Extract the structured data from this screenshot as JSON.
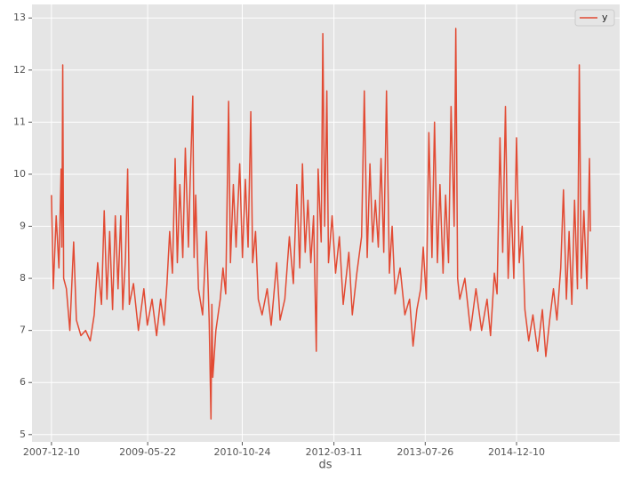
{
  "chart_data": {
    "type": "line",
    "x_label": "ds",
    "x": [
      "2007-12-10",
      "2007-12-20",
      "2008-01-05",
      "2008-01-20",
      "2008-02-01",
      "2008-02-05",
      "2008-02-10",
      "2008-02-15",
      "2008-03-01",
      "2008-03-20",
      "2008-04-10",
      "2008-04-25",
      "2008-05-20",
      "2008-06-15",
      "2008-07-10",
      "2008-08-01",
      "2008-08-20",
      "2008-09-10",
      "2008-09-25",
      "2008-10-10",
      "2008-10-25",
      "2008-11-10",
      "2008-11-25",
      "2008-12-10",
      "2008-12-25",
      "2009-01-05",
      "2009-01-20",
      "2009-02-01",
      "2009-02-10",
      "2009-03-05",
      "2009-04-01",
      "2009-05-01",
      "2009-05-20",
      "2009-06-15",
      "2009-07-10",
      "2009-08-01",
      "2009-08-20",
      "2009-09-05",
      "2009-09-20",
      "2009-10-05",
      "2009-10-20",
      "2009-11-01",
      "2009-11-15",
      "2009-12-01",
      "2009-12-15",
      "2010-01-01",
      "2010-01-10",
      "2010-01-25",
      "2010-02-01",
      "2010-02-10",
      "2010-02-25",
      "2010-03-20",
      "2010-04-10",
      "2010-04-25",
      "2010-05-05",
      "2010-05-10",
      "2010-05-15",
      "2010-06-01",
      "2010-06-25",
      "2010-07-10",
      "2010-07-25",
      "2010-08-10",
      "2010-08-20",
      "2010-09-05",
      "2010-09-20",
      "2010-10-10",
      "2010-10-25",
      "2010-11-10",
      "2010-11-25",
      "2010-12-10",
      "2010-12-20",
      "2011-01-05",
      "2011-01-20",
      "2011-02-10",
      "2011-03-10",
      "2011-04-01",
      "2011-05-01",
      "2011-05-20",
      "2011-06-15",
      "2011-07-10",
      "2011-08-01",
      "2011-08-20",
      "2011-09-05",
      "2011-09-20",
      "2011-10-05",
      "2011-10-20",
      "2011-11-05",
      "2011-11-20",
      "2011-12-05",
      "2011-12-15",
      "2012-01-01",
      "2012-01-10",
      "2012-01-20",
      "2012-02-01",
      "2012-02-10",
      "2012-03-01",
      "2012-03-20",
      "2012-04-10",
      "2012-05-01",
      "2012-06-01",
      "2012-06-20",
      "2012-07-15",
      "2012-08-10",
      "2012-08-25",
      "2012-09-10",
      "2012-09-25",
      "2012-10-10",
      "2012-10-25",
      "2012-11-10",
      "2012-11-25",
      "2012-12-10",
      "2012-12-25",
      "2013-01-10",
      "2013-01-25",
      "2013-02-10",
      "2013-03-10",
      "2013-04-05",
      "2013-05-01",
      "2013-05-20",
      "2013-06-10",
      "2013-07-01",
      "2013-07-15",
      "2013-08-01",
      "2013-08-15",
      "2013-09-01",
      "2013-09-15",
      "2013-10-01",
      "2013-10-15",
      "2013-11-01",
      "2013-11-15",
      "2013-12-01",
      "2013-12-15",
      "2014-01-01",
      "2014-01-10",
      "2014-01-20",
      "2014-02-01",
      "2014-03-01",
      "2014-04-01",
      "2014-05-01",
      "2014-06-01",
      "2014-07-01",
      "2014-07-20",
      "2014-08-10",
      "2014-08-25",
      "2014-09-10",
      "2014-09-25",
      "2014-10-10",
      "2014-10-25",
      "2014-11-10",
      "2014-11-25",
      "2014-12-10",
      "2014-12-25",
      "2015-01-10",
      "2015-01-25",
      "2015-02-15",
      "2015-03-10",
      "2015-04-05",
      "2015-05-01",
      "2015-05-20",
      "2015-06-10",
      "2015-07-01",
      "2015-07-20",
      "2015-08-10",
      "2015-08-25",
      "2015-09-10",
      "2015-09-25",
      "2015-10-10",
      "2015-10-25",
      "2015-11-10",
      "2015-11-20",
      "2015-12-01",
      "2015-12-15",
      "2016-01-01",
      "2016-01-15",
      "2016-01-20"
    ],
    "series": [
      {
        "name": "y",
        "color": "#E24A33",
        "values": [
          9.6,
          7.8,
          9.2,
          8.2,
          10.1,
          8.6,
          12.1,
          8.0,
          7.8,
          7.0,
          8.7,
          7.2,
          6.9,
          7.0,
          6.8,
          7.3,
          8.3,
          7.5,
          9.3,
          7.6,
          8.9,
          7.4,
          9.2,
          7.8,
          9.2,
          7.4,
          8.4,
          10.1,
          7.5,
          7.9,
          7.0,
          7.8,
          7.1,
          7.6,
          6.9,
          7.6,
          7.1,
          7.9,
          8.9,
          8.1,
          10.3,
          8.3,
          9.8,
          8.4,
          10.5,
          8.6,
          9.8,
          11.5,
          8.4,
          9.6,
          7.8,
          7.3,
          8.9,
          7.2,
          5.3,
          7.5,
          6.1,
          7.0,
          7.6,
          8.2,
          7.7,
          11.4,
          8.3,
          9.8,
          8.6,
          10.2,
          8.4,
          9.9,
          8.6,
          11.2,
          8.3,
          8.9,
          7.6,
          7.3,
          7.8,
          7.1,
          8.3,
          7.2,
          7.6,
          8.8,
          7.9,
          9.8,
          8.2,
          10.2,
          8.5,
          9.5,
          8.3,
          9.2,
          6.6,
          10.1,
          8.7,
          12.7,
          9.0,
          11.6,
          8.3,
          9.2,
          8.1,
          8.8,
          7.5,
          8.5,
          7.3,
          8.1,
          8.8,
          11.6,
          8.4,
          10.2,
          8.7,
          9.5,
          8.6,
          10.3,
          8.5,
          11.6,
          8.1,
          9.0,
          7.7,
          8.2,
          7.3,
          7.6,
          6.7,
          7.4,
          7.8,
          8.6,
          7.6,
          10.8,
          8.4,
          11.0,
          8.3,
          9.8,
          8.1,
          9.6,
          8.3,
          11.3,
          9.0,
          12.8,
          8.0,
          7.6,
          8.0,
          7.0,
          7.8,
          7.0,
          7.6,
          6.9,
          8.1,
          7.7,
          10.7,
          8.5,
          11.3,
          8.0,
          9.5,
          8.0,
          10.7,
          8.3,
          9.0,
          7.4,
          6.8,
          7.3,
          6.6,
          7.4,
          6.5,
          7.2,
          7.8,
          7.2,
          8.2,
          9.7,
          7.6,
          8.9,
          7.5,
          9.5,
          7.8,
          12.1,
          8.0,
          9.3,
          7.8,
          10.3,
          8.9
        ]
      }
    ],
    "xlim": [
      "2007-08-25",
      "2016-06-29"
    ],
    "xticks": [
      "2007-12-10",
      "2009-05-22",
      "2010-10-24",
      "2012-03-11",
      "2013-07-26",
      "2014-12-10"
    ],
    "ylim": [
      4.86,
      13.26
    ],
    "yticks": [
      5,
      6,
      7,
      8,
      9,
      10,
      11,
      12,
      13
    ],
    "grid": true,
    "legend": "upper right"
  }
}
